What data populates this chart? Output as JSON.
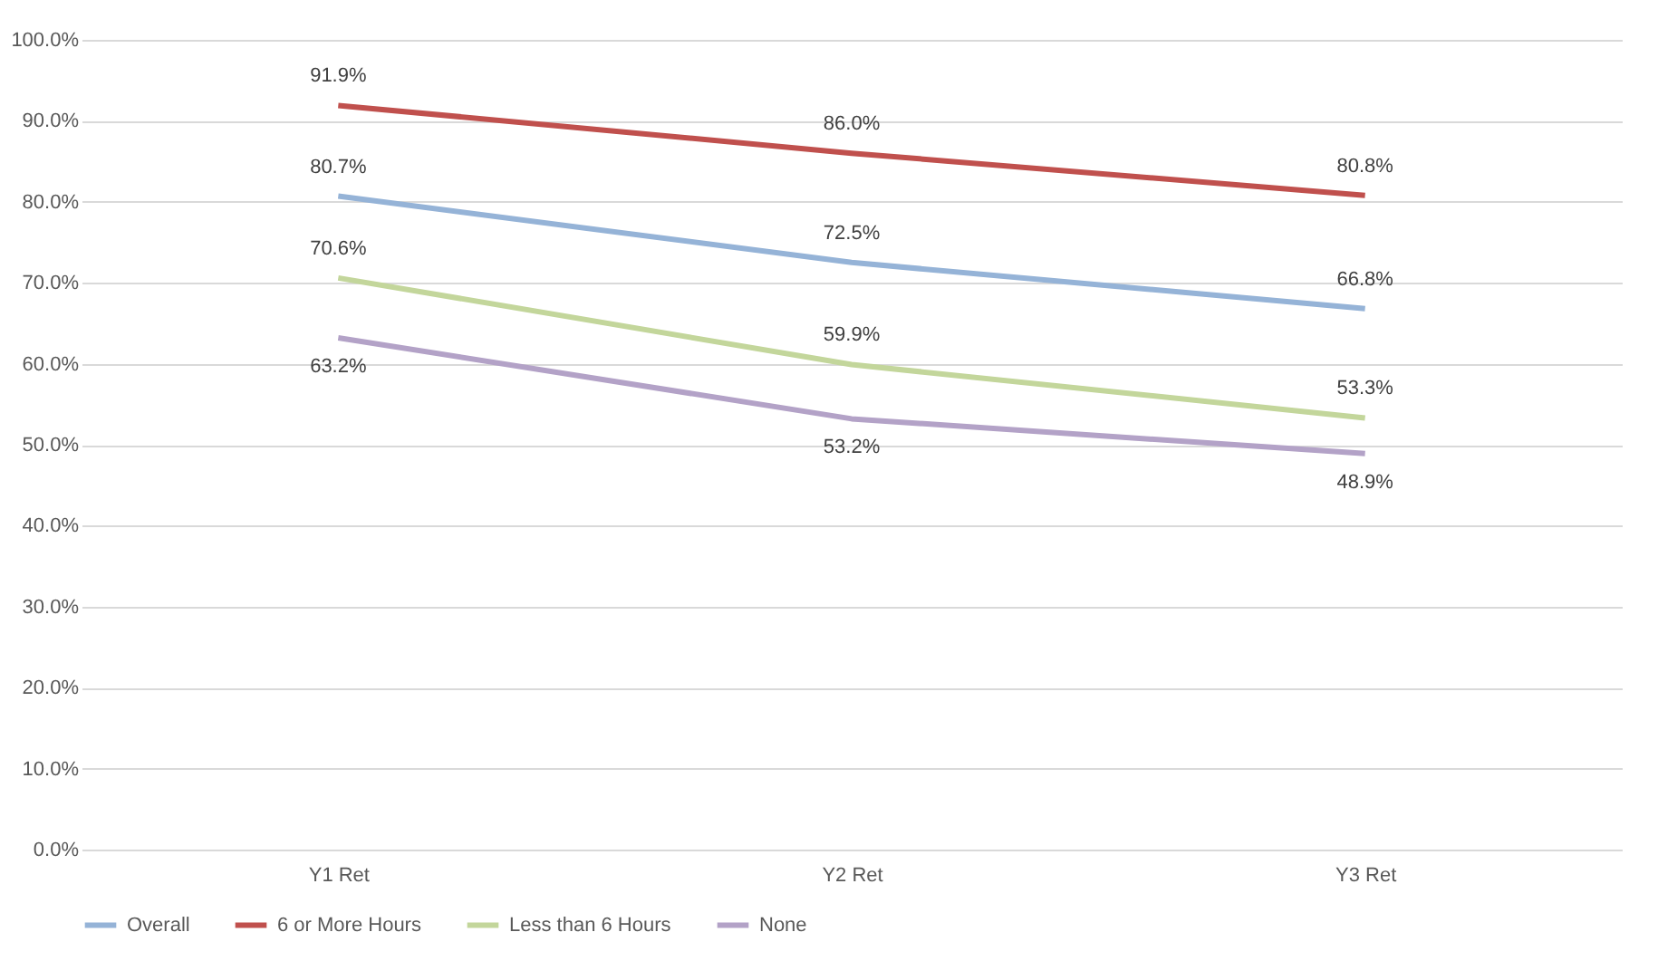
{
  "chart_data": {
    "type": "line",
    "categories": [
      "Y1 Ret",
      "Y2 Ret",
      "Y3 Ret"
    ],
    "series": [
      {
        "name": "Overall",
        "color": "#95b3d7",
        "values": [
          80.7,
          72.5,
          66.8
        ],
        "value_labels": [
          "80.7%",
          "72.5%",
          "66.8%"
        ]
      },
      {
        "name": "6 or More Hours",
        "color": "#c0504d",
        "values": [
          91.9,
          86.0,
          80.8
        ],
        "value_labels": [
          "91.9%",
          "86.0%",
          "80.8%"
        ]
      },
      {
        "name": "Less than 6 Hours",
        "color": "#c3d69b",
        "values": [
          70.6,
          59.9,
          53.3
        ],
        "value_labels": [
          "70.6%",
          "59.9%",
          "53.3%"
        ]
      },
      {
        "name": "None",
        "color": "#b3a2c7",
        "values": [
          63.2,
          53.2,
          48.9
        ],
        "value_labels": [
          "63.2%",
          "53.2%",
          "48.9%"
        ]
      }
    ],
    "ylim": [
      0,
      100
    ],
    "yticks": [
      {
        "value": 0,
        "label": "0.0%"
      },
      {
        "value": 10,
        "label": "10.0%"
      },
      {
        "value": 20,
        "label": "20.0%"
      },
      {
        "value": 30,
        "label": "30.0%"
      },
      {
        "value": 40,
        "label": "40.0%"
      },
      {
        "value": 50,
        "label": "50.0%"
      },
      {
        "value": 60,
        "label": "60.0%"
      },
      {
        "value": 70,
        "label": "70.0%"
      },
      {
        "value": 80,
        "label": "80.0%"
      },
      {
        "value": 90,
        "label": "90.0%"
      },
      {
        "value": 100,
        "label": "100.0%"
      }
    ],
    "grid": "y",
    "legend": "bottom"
  }
}
